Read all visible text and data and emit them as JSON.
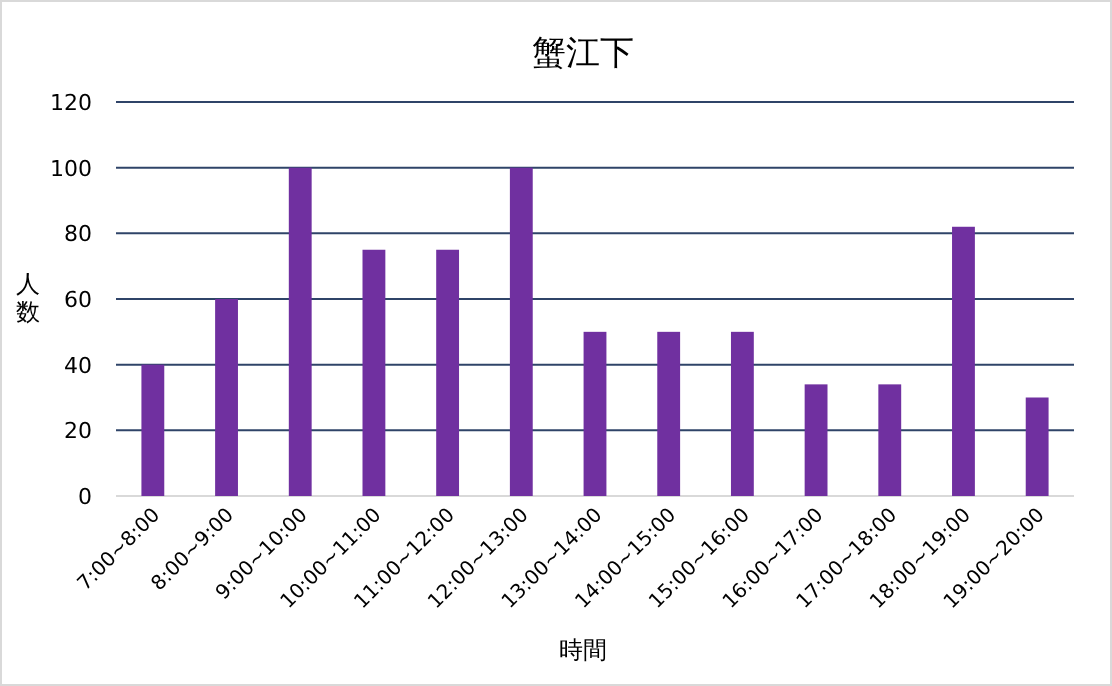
{
  "chart_data": {
    "type": "bar",
    "title": "蟹江下",
    "xlabel": "時間",
    "ylabel": "人数",
    "categories": [
      "7:00~8:00",
      "8:00~9:00",
      "9:00~10:00",
      "10:00~11:00",
      "11:00~12:00",
      "12:00~13:00",
      "13:00~14:00",
      "14:00~15:00",
      "15:00~16:00",
      "16:00~17:00",
      "17:00~18:00",
      "18:00~19:00",
      "19:00~20:00"
    ],
    "values": [
      40,
      60,
      100,
      75,
      75,
      100,
      50,
      50,
      50,
      34,
      34,
      82,
      30
    ],
    "color": "#7030a0",
    "ylim": [
      0,
      120
    ],
    "yticks": [
      0,
      20,
      40,
      60,
      80,
      100,
      120
    ],
    "grid": "y"
  }
}
